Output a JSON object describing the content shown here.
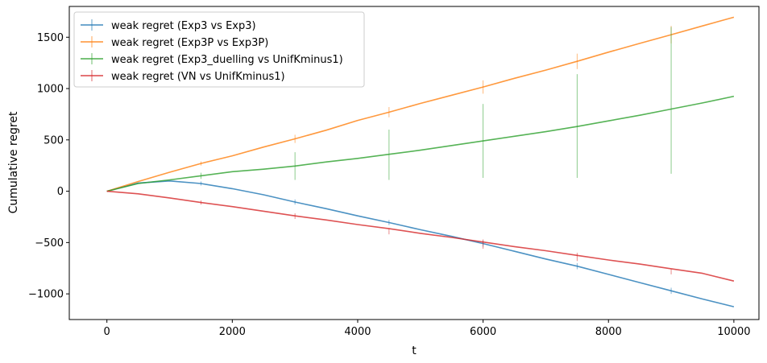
{
  "chart_data": {
    "type": "line",
    "xlabel": "t",
    "ylabel": "Cumulative regret",
    "xlim": [
      -600,
      10400
    ],
    "ylim": [
      -1250,
      1800
    ],
    "xticks": [
      0,
      2000,
      4000,
      6000,
      8000,
      10000
    ],
    "xtick_labels": [
      "0",
      "2000",
      "4000",
      "6000",
      "8000",
      "10000"
    ],
    "yticks": [
      -1000,
      -500,
      0,
      500,
      1000,
      1500
    ],
    "ytick_labels": [
      "−1000",
      "−500",
      "0",
      "500",
      "1000",
      "1500"
    ],
    "grid": false,
    "legend_position": "top-left",
    "x": [
      0,
      500,
      1000,
      1500,
      2000,
      2500,
      3000,
      3500,
      4000,
      4500,
      5000,
      5500,
      6000,
      6500,
      7000,
      7500,
      8000,
      8500,
      9000,
      9500,
      10000
    ],
    "series": [
      {
        "name": "weak regret (Exp3 vs Exp3)",
        "color": "#1f77b4",
        "values": [
          0,
          80,
          100,
          75,
          25,
          -35,
          -105,
          -170,
          -240,
          -305,
          -375,
          -440,
          -510,
          -585,
          -660,
          -730,
          -810,
          -890,
          -970,
          -1050,
          -1125
        ],
        "errorbars": [
          {
            "x": 1500,
            "low": 55,
            "high": 95
          },
          {
            "x": 3000,
            "low": -130,
            "high": -80
          },
          {
            "x": 4500,
            "low": -330,
            "high": -280
          },
          {
            "x": 6000,
            "low": -540,
            "high": -480
          },
          {
            "x": 7500,
            "low": -760,
            "high": -700
          },
          {
            "x": 9000,
            "low": -1000,
            "high": -940
          }
        ]
      },
      {
        "name": "weak regret (Exp3P vs Exp3P)",
        "color": "#ff7f0e",
        "values": [
          0,
          95,
          185,
          270,
          345,
          430,
          510,
          595,
          690,
          770,
          855,
          935,
          1015,
          1100,
          1180,
          1265,
          1355,
          1440,
          1525,
          1610,
          1695
        ],
        "errorbars": [
          {
            "x": 1500,
            "low": 250,
            "high": 290
          },
          {
            "x": 3000,
            "low": 470,
            "high": 550
          },
          {
            "x": 4500,
            "low": 720,
            "high": 820
          },
          {
            "x": 6000,
            "low": 950,
            "high": 1080
          },
          {
            "x": 7500,
            "low": 1190,
            "high": 1340
          },
          {
            "x": 9000,
            "low": 1440,
            "high": 1610
          }
        ]
      },
      {
        "name": "weak regret (Exp3_duelling vs UnifKminus1)",
        "color": "#2ca02c",
        "values": [
          0,
          75,
          110,
          150,
          190,
          215,
          245,
          285,
          320,
          360,
          400,
          445,
          490,
          535,
          580,
          630,
          685,
          740,
          800,
          860,
          925
        ],
        "errorbars": [
          {
            "x": 1500,
            "low": 120,
            "high": 180
          },
          {
            "x": 3000,
            "low": 110,
            "high": 380
          },
          {
            "x": 4500,
            "low": 110,
            "high": 600
          },
          {
            "x": 6000,
            "low": 130,
            "high": 850
          },
          {
            "x": 7500,
            "low": 130,
            "high": 1140
          },
          {
            "x": 9000,
            "low": 170,
            "high": 1600
          }
        ]
      },
      {
        "name": "weak regret (VN vs UnifKminus1)",
        "color": "#d62728",
        "values": [
          0,
          -25,
          -65,
          -110,
          -150,
          -195,
          -240,
          -280,
          -325,
          -365,
          -410,
          -450,
          -495,
          -540,
          -580,
          -625,
          -670,
          -710,
          -755,
          -800,
          -875
        ],
        "errorbars": [
          {
            "x": 1500,
            "low": -130,
            "high": -90
          },
          {
            "x": 3000,
            "low": -270,
            "high": -215
          },
          {
            "x": 4500,
            "low": -420,
            "high": -360
          },
          {
            "x": 6000,
            "low": -560,
            "high": -470
          },
          {
            "x": 7500,
            "low": -680,
            "high": -600
          },
          {
            "x": 9000,
            "low": -810,
            "high": -760
          }
        ]
      }
    ]
  }
}
